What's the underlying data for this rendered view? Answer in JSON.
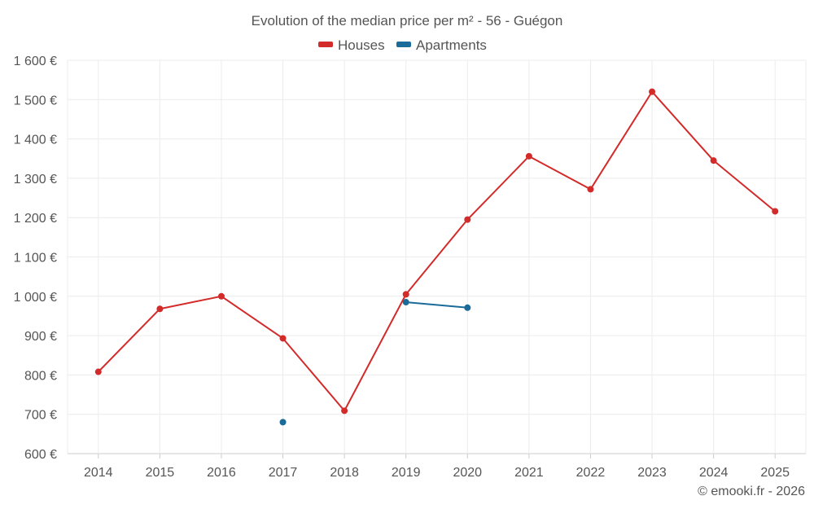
{
  "chart_data": {
    "type": "line",
    "title": "Evolution of the median price per m² - 56 - Guégon",
    "categories": [
      "2014",
      "2015",
      "2016",
      "2017",
      "2018",
      "2019",
      "2020",
      "2021",
      "2022",
      "2023",
      "2024",
      "2025"
    ],
    "ylim": [
      600,
      1600
    ],
    "yticks": [
      600,
      700,
      800,
      900,
      1000,
      1100,
      1200,
      1300,
      1400,
      1500,
      1600
    ],
    "ytick_labels": [
      "600 €",
      "700 €",
      "800 €",
      "900 €",
      "1 000 €",
      "1 100 €",
      "1 200 €",
      "1 300 €",
      "1 400 €",
      "1 500 €",
      "1 600 €"
    ],
    "grid": true,
    "legend_position": "top-center",
    "series": [
      {
        "name": "Houses",
        "color": "#d32a2a",
        "values": [
          808,
          968,
          1000,
          893,
          709,
          1005,
          1195,
          1356,
          1272,
          1520,
          1345,
          1216
        ]
      },
      {
        "name": "Apartments",
        "color": "#1a6a9a",
        "values": [
          null,
          null,
          null,
          680,
          null,
          985,
          971,
          null,
          null,
          null,
          null,
          null
        ]
      }
    ]
  },
  "credit": "© emooki.fr - 2026"
}
